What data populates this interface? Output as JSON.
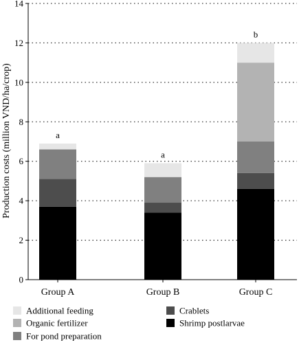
{
  "chart_data": {
    "type": "bar",
    "stacked": true,
    "categories": [
      "Group A",
      "Group B",
      "Group C"
    ],
    "series": [
      {
        "name": "Shrimp postlarvae",
        "values": [
          3.7,
          3.4,
          4.6
        ],
        "color": "#000000"
      },
      {
        "name": "Crablets",
        "values": [
          1.4,
          0.5,
          0.8
        ],
        "color": "#4d4d4d"
      },
      {
        "name": "For pond preparation",
        "values": [
          1.5,
          1.3,
          1.6
        ],
        "color": "#808080"
      },
      {
        "name": "Organic fertilizer",
        "values": [
          0.0,
          0.0,
          4.0
        ],
        "color": "#b3b3b3"
      },
      {
        "name": "Additional feeding",
        "values": [
          0.3,
          0.7,
          1.0
        ],
        "color": "#e6e6e6"
      }
    ],
    "significance_labels": [
      "a",
      "a",
      "b"
    ],
    "xlabel": "",
    "ylabel": "Production costs (million VND/ha/crop)",
    "ylim": [
      0,
      14
    ],
    "yticks": [
      0,
      2,
      4,
      6,
      8,
      10,
      12,
      14
    ],
    "grid": "horizontal-dotted",
    "legend": {
      "placement": "bottom",
      "columns": [
        [
          "Additional feeding",
          "Organic fertilizer",
          "For pond preparation"
        ],
        [
          "Crablets",
          "Shrimp postlarvae"
        ]
      ]
    }
  }
}
